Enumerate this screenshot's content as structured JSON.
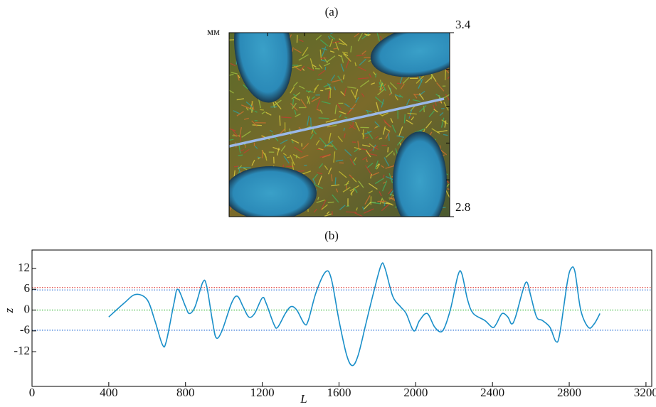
{
  "chart_data": [
    {
      "type": "image",
      "title": "(a)",
      "unit_label": "мм",
      "ylim": [
        2.8,
        3.4
      ],
      "yticks": [
        3.4,
        2.8
      ],
      "minor_yticks": [
        3.28,
        3.16,
        3.04,
        2.92
      ]
    },
    {
      "type": "line",
      "title": "(b)",
      "xlabel": "L",
      "ylabel": "z",
      "x": [
        400,
        480,
        540,
        600,
        640,
        680,
        700,
        740,
        760,
        800,
        820,
        850,
        890,
        910,
        940,
        960,
        990,
        1040,
        1070,
        1100,
        1130,
        1160,
        1200,
        1220,
        1260,
        1280,
        1320,
        1350,
        1380,
        1420,
        1440,
        1480,
        1530,
        1560,
        1600,
        1640,
        1670,
        1700,
        1740,
        1780,
        1820,
        1840,
        1880,
        1920,
        1950,
        1990,
        2020,
        2060,
        2100,
        2140,
        2180,
        2220,
        2240,
        2270,
        2300,
        2360,
        2400,
        2420,
        2450,
        2480,
        2500,
        2520,
        2560,
        2580,
        2600,
        2630,
        2660,
        2700,
        2730,
        2750,
        2790,
        2810,
        2830,
        2860,
        2900,
        2930,
        2960
      ],
      "series": [
        {
          "color": "#1a8fc9",
          "values": [
            -2,
            2,
            4.5,
            3,
            -3,
            -10,
            -9,
            2,
            6,
            1,
            -1,
            1,
            8,
            7,
            -3,
            -8,
            -6,
            2,
            4,
            1,
            -2,
            -1,
            3.5,
            2,
            -4,
            -5,
            -1,
            1,
            0,
            -4,
            -3,
            5,
            11,
            9,
            -3,
            -13,
            -16,
            -13,
            -4,
            5,
            13,
            12,
            4,
            1,
            -1,
            -6,
            -3,
            -1,
            -5,
            -6,
            0,
            10,
            10.5,
            3,
            -1,
            -3,
            -5,
            -4,
            -1,
            -2,
            -4,
            -2,
            6,
            8,
            4,
            -2,
            -3,
            -5,
            -9,
            -7,
            8,
            12,
            11,
            0,
            -5,
            -4,
            -1
          ]
        }
      ],
      "xlim": [
        0,
        3230
      ],
      "xticks": [
        0,
        400,
        800,
        1200,
        1600,
        2000,
        2400,
        2800,
        3200
      ],
      "ylim": [
        -22,
        17.3
      ],
      "yticks": [
        12,
        6,
        0,
        -6,
        -12
      ],
      "hlines": [
        {
          "value": 6.5,
          "color": "#e0403a"
        },
        {
          "value": 5.8,
          "color": "#2a6fd6"
        },
        {
          "value": 0,
          "color": "#3cb83c"
        },
        {
          "value": -5.8,
          "color": "#2a6fd6"
        }
      ]
    }
  ]
}
